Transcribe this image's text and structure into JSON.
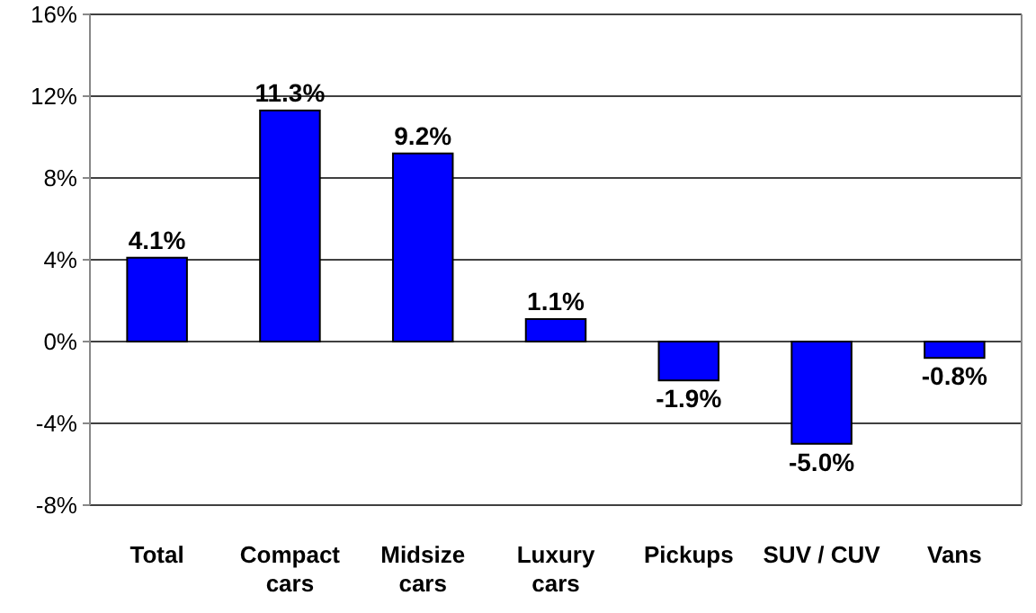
{
  "chart_data": {
    "type": "bar",
    "categories": [
      "Total",
      "Compact cars",
      "Midsize cars",
      "Luxury cars",
      "Pickups",
      "SUV / CUV",
      "Vans"
    ],
    "values": [
      4.1,
      11.3,
      9.2,
      1.1,
      -1.9,
      -5.0,
      -0.8
    ],
    "value_labels": [
      "4.1%",
      "11.3%",
      "9.2%",
      "1.1%",
      "-1.9%",
      "-5.0%",
      "-0.8%"
    ],
    "color": "#0000ff",
    "ylim": [
      -8,
      16
    ],
    "yticks": [
      {
        "value": -8,
        "label": "-8%"
      },
      {
        "value": -4,
        "label": "-4%"
      },
      {
        "value": 0,
        "label": "0%"
      },
      {
        "value": 4,
        "label": "4%"
      },
      {
        "value": 8,
        "label": "8%"
      },
      {
        "value": 12,
        "label": "12%"
      },
      {
        "value": 16,
        "label": "16%"
      }
    ],
    "grid": "y"
  }
}
